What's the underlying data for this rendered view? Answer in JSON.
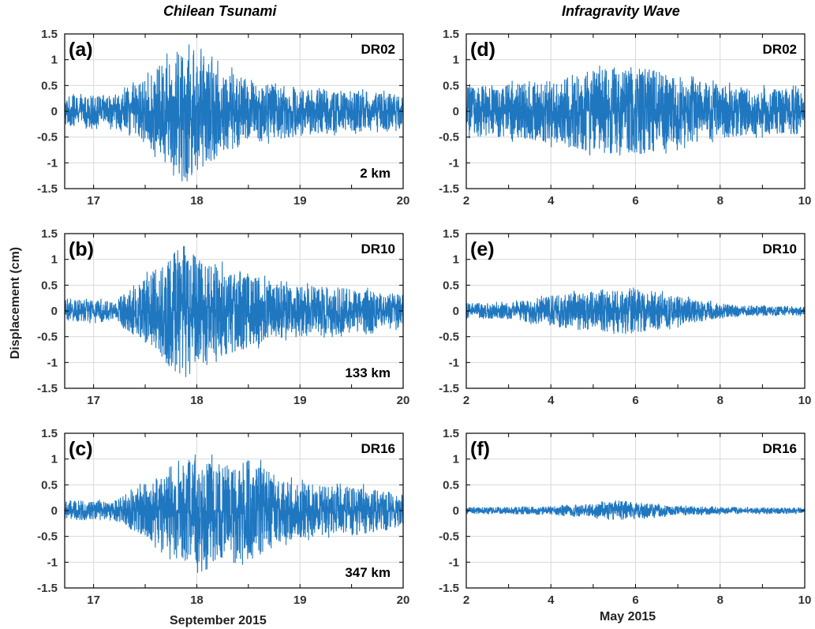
{
  "figure": {
    "left_title": "Chilean Tsunami",
    "right_title": "Infragravity  Wave",
    "ylabel": "Displacement  (cm)",
    "left_xlabel": "September  2015",
    "right_xlabel": "May  2015",
    "line_color": "#1f77c0",
    "grid_color": "#d9d9d9"
  },
  "chart_data": [
    {
      "type": "line",
      "panel": "(a)",
      "station": "DR02",
      "distance": "2 km",
      "xlim": [
        16.72,
        20
      ],
      "ylim": [
        -1.5,
        1.5
      ],
      "xticks": [
        17,
        18,
        19,
        20
      ],
      "yticks": [
        -1.5,
        -1,
        -0.5,
        0,
        0.5,
        1,
        1.5
      ],
      "ytick_labels": [
        "-1.5",
        "-1",
        "-0.5",
        "0",
        "0.5",
        "1",
        "1.5"
      ],
      "envelope": {
        "x": [
          16.72,
          17.2,
          17.5,
          17.7,
          17.9,
          18.0,
          18.2,
          18.5,
          19.0,
          19.5,
          20.0
        ],
        "y": [
          0.28,
          0.3,
          0.6,
          0.95,
          1.3,
          1.1,
          0.85,
          0.6,
          0.45,
          0.38,
          0.32
        ]
      },
      "max_value": 1.36,
      "min_value": -1.35
    },
    {
      "type": "line",
      "panel": "(b)",
      "station": "DR10",
      "distance": "133 km",
      "xlim": [
        16.72,
        20
      ],
      "ylim": [
        -1.5,
        1.5
      ],
      "xticks": [
        17,
        18,
        19,
        20
      ],
      "yticks": [
        -1.5,
        -1,
        -0.5,
        0,
        0.5,
        1,
        1.5
      ],
      "ytick_labels": [
        "-1.5",
        "-1",
        "-0.5",
        "0",
        "0.5",
        "1",
        "1.5"
      ],
      "envelope": {
        "x": [
          16.72,
          17.2,
          17.55,
          17.75,
          17.9,
          18.1,
          18.4,
          18.8,
          19.2,
          19.6,
          20.0
        ],
        "y": [
          0.2,
          0.2,
          0.7,
          1.1,
          1.25,
          0.9,
          0.75,
          0.5,
          0.45,
          0.4,
          0.3
        ]
      },
      "max_value": 1.25,
      "min_value": -1.38
    },
    {
      "type": "line",
      "panel": "(c)",
      "station": "DR16",
      "distance": "347 km",
      "xlim": [
        16.72,
        20
      ],
      "ylim": [
        -1.5,
        1.5
      ],
      "xticks": [
        17,
        18,
        19,
        20
      ],
      "yticks": [
        -1.5,
        -1,
        -0.5,
        0,
        0.5,
        1,
        1.5
      ],
      "ytick_labels": [
        "-1.5",
        "-1",
        "-0.5",
        "0",
        "0.5",
        "1",
        "1.5"
      ],
      "envelope": {
        "x": [
          16.72,
          17.2,
          17.55,
          17.8,
          18.0,
          18.3,
          18.55,
          18.8,
          19.2,
          19.6,
          20.0
        ],
        "y": [
          0.18,
          0.18,
          0.55,
          0.9,
          1.05,
          0.85,
          0.95,
          0.6,
          0.45,
          0.45,
          0.3
        ]
      },
      "max_value": 1.08,
      "min_value": -1.2
    },
    {
      "type": "line",
      "panel": "(d)",
      "station": "DR02",
      "distance": "",
      "xlim": [
        2,
        10
      ],
      "ylim": [
        -1.5,
        1.5
      ],
      "xticks": [
        2,
        4,
        6,
        8,
        10
      ],
      "yticks": [
        -1.5,
        -1,
        -0.5,
        0,
        0.5,
        1,
        1.5
      ],
      "ytick_labels": [
        "-1.5",
        "-1",
        "-0.5",
        "0",
        "0.5",
        "1",
        "1.5"
      ],
      "envelope": {
        "x": [
          2,
          3,
          4,
          5,
          5.8,
          6.5,
          7.5,
          8.5,
          10
        ],
        "y": [
          0.45,
          0.5,
          0.6,
          0.75,
          0.85,
          0.75,
          0.55,
          0.45,
          0.42
        ]
      },
      "max_value": 0.88,
      "min_value": -0.85
    },
    {
      "type": "line",
      "panel": "(e)",
      "station": "DR10",
      "distance": "",
      "xlim": [
        2,
        10
      ],
      "ylim": [
        -1.5,
        1.5
      ],
      "xticks": [
        2,
        4,
        6,
        8,
        10
      ],
      "yticks": [
        -1.5,
        -1,
        -0.5,
        0,
        0.5,
        1,
        1.5
      ],
      "ytick_labels": [
        "-1.5",
        "-1",
        "-0.5",
        "0",
        "0.5",
        "1",
        "1.5"
      ],
      "envelope": {
        "x": [
          2,
          3,
          4,
          5,
          5.8,
          6.5,
          7.5,
          8.5,
          10
        ],
        "y": [
          0.14,
          0.15,
          0.28,
          0.38,
          0.45,
          0.35,
          0.2,
          0.1,
          0.08
        ]
      },
      "max_value": 0.48,
      "min_value": -0.45
    },
    {
      "type": "line",
      "panel": "(f)",
      "station": "DR16",
      "distance": "",
      "xlim": [
        2,
        10
      ],
      "ylim": [
        -1.5,
        1.5
      ],
      "xticks": [
        2,
        4,
        6,
        8,
        10
      ],
      "yticks": [
        -1.5,
        -1,
        -0.5,
        0,
        0.5,
        1,
        1.5
      ],
      "ytick_labels": [
        "-1.5",
        "-1",
        "-0.5",
        "0",
        "0.5",
        "1",
        "1.5"
      ],
      "envelope": {
        "x": [
          2,
          3,
          4,
          5,
          5.5,
          6,
          7,
          8.5,
          10
        ],
        "y": [
          0.06,
          0.06,
          0.08,
          0.12,
          0.2,
          0.15,
          0.08,
          0.06,
          0.05
        ]
      },
      "max_value": 0.2,
      "min_value": -0.17
    }
  ]
}
